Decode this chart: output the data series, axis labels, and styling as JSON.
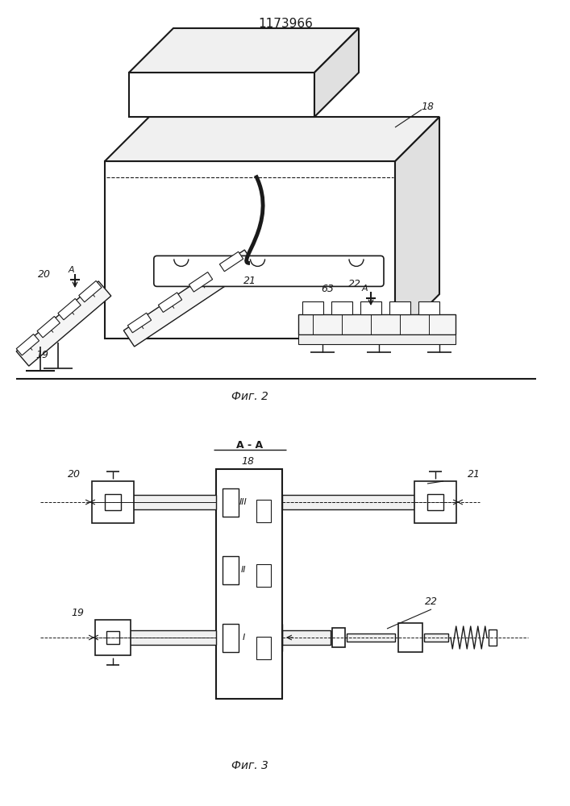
{
  "title": "1173966",
  "fig2_caption": "Фиг. 2",
  "fig3_caption": "Фиг. 3",
  "fig3_header": "A - A",
  "bg": "#ffffff",
  "lc": "#1a1a1a"
}
